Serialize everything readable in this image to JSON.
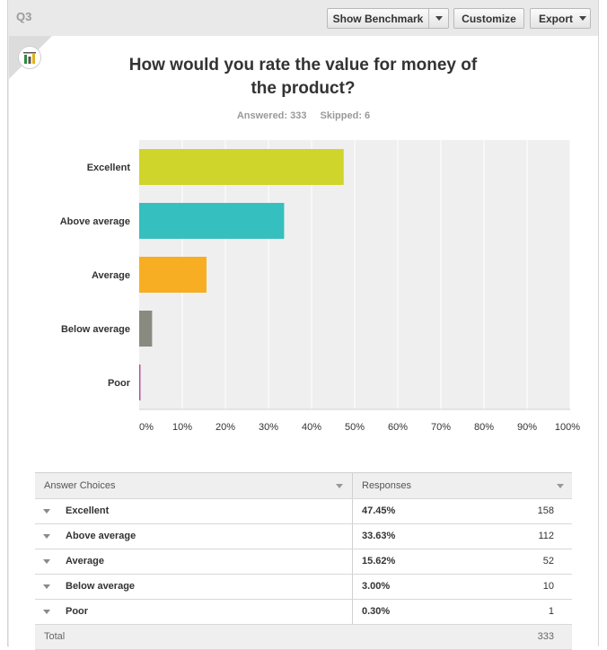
{
  "question": {
    "label": "Q3",
    "title_line1": "How would you rate the value for money of",
    "title_line2": "the product?",
    "answered": "Answered: 333",
    "skipped": "Skipped: 6"
  },
  "toolbar": {
    "benchmark_label": "Show Benchmark",
    "customize_label": "Customize",
    "export_label": "Export"
  },
  "colors": {
    "excellent": "#cfd52a",
    "above_average": "#36bfbf",
    "average": "#f7ae22",
    "below_average": "#8a8b80",
    "poor": "#b24e9a",
    "plot_bg": "#efefef"
  },
  "chart_data": {
    "type": "bar",
    "orientation": "horizontal",
    "categories": [
      "Excellent",
      "Above average",
      "Average",
      "Below average",
      "Poor"
    ],
    "values": [
      47.45,
      33.63,
      15.62,
      3.0,
      0.3
    ],
    "xlim": [
      0,
      100
    ],
    "xticks": [
      "0%",
      "10%",
      "20%",
      "30%",
      "40%",
      "50%",
      "60%",
      "70%",
      "80%",
      "90%",
      "100%"
    ],
    "grid": true,
    "title": "How would you rate the value for money of the product?"
  },
  "table": {
    "header_choices": "Answer Choices",
    "header_responses": "Responses",
    "rows": [
      {
        "choice": "Excellent",
        "percent": "47.45%",
        "count": "158"
      },
      {
        "choice": "Above average",
        "percent": "33.63%",
        "count": "112"
      },
      {
        "choice": "Average",
        "percent": "15.62%",
        "count": "52"
      },
      {
        "choice": "Below average",
        "percent": "3.00%",
        "count": "10"
      },
      {
        "choice": "Poor",
        "percent": "0.30%",
        "count": "1"
      }
    ],
    "total_label": "Total",
    "total_count": "333"
  }
}
